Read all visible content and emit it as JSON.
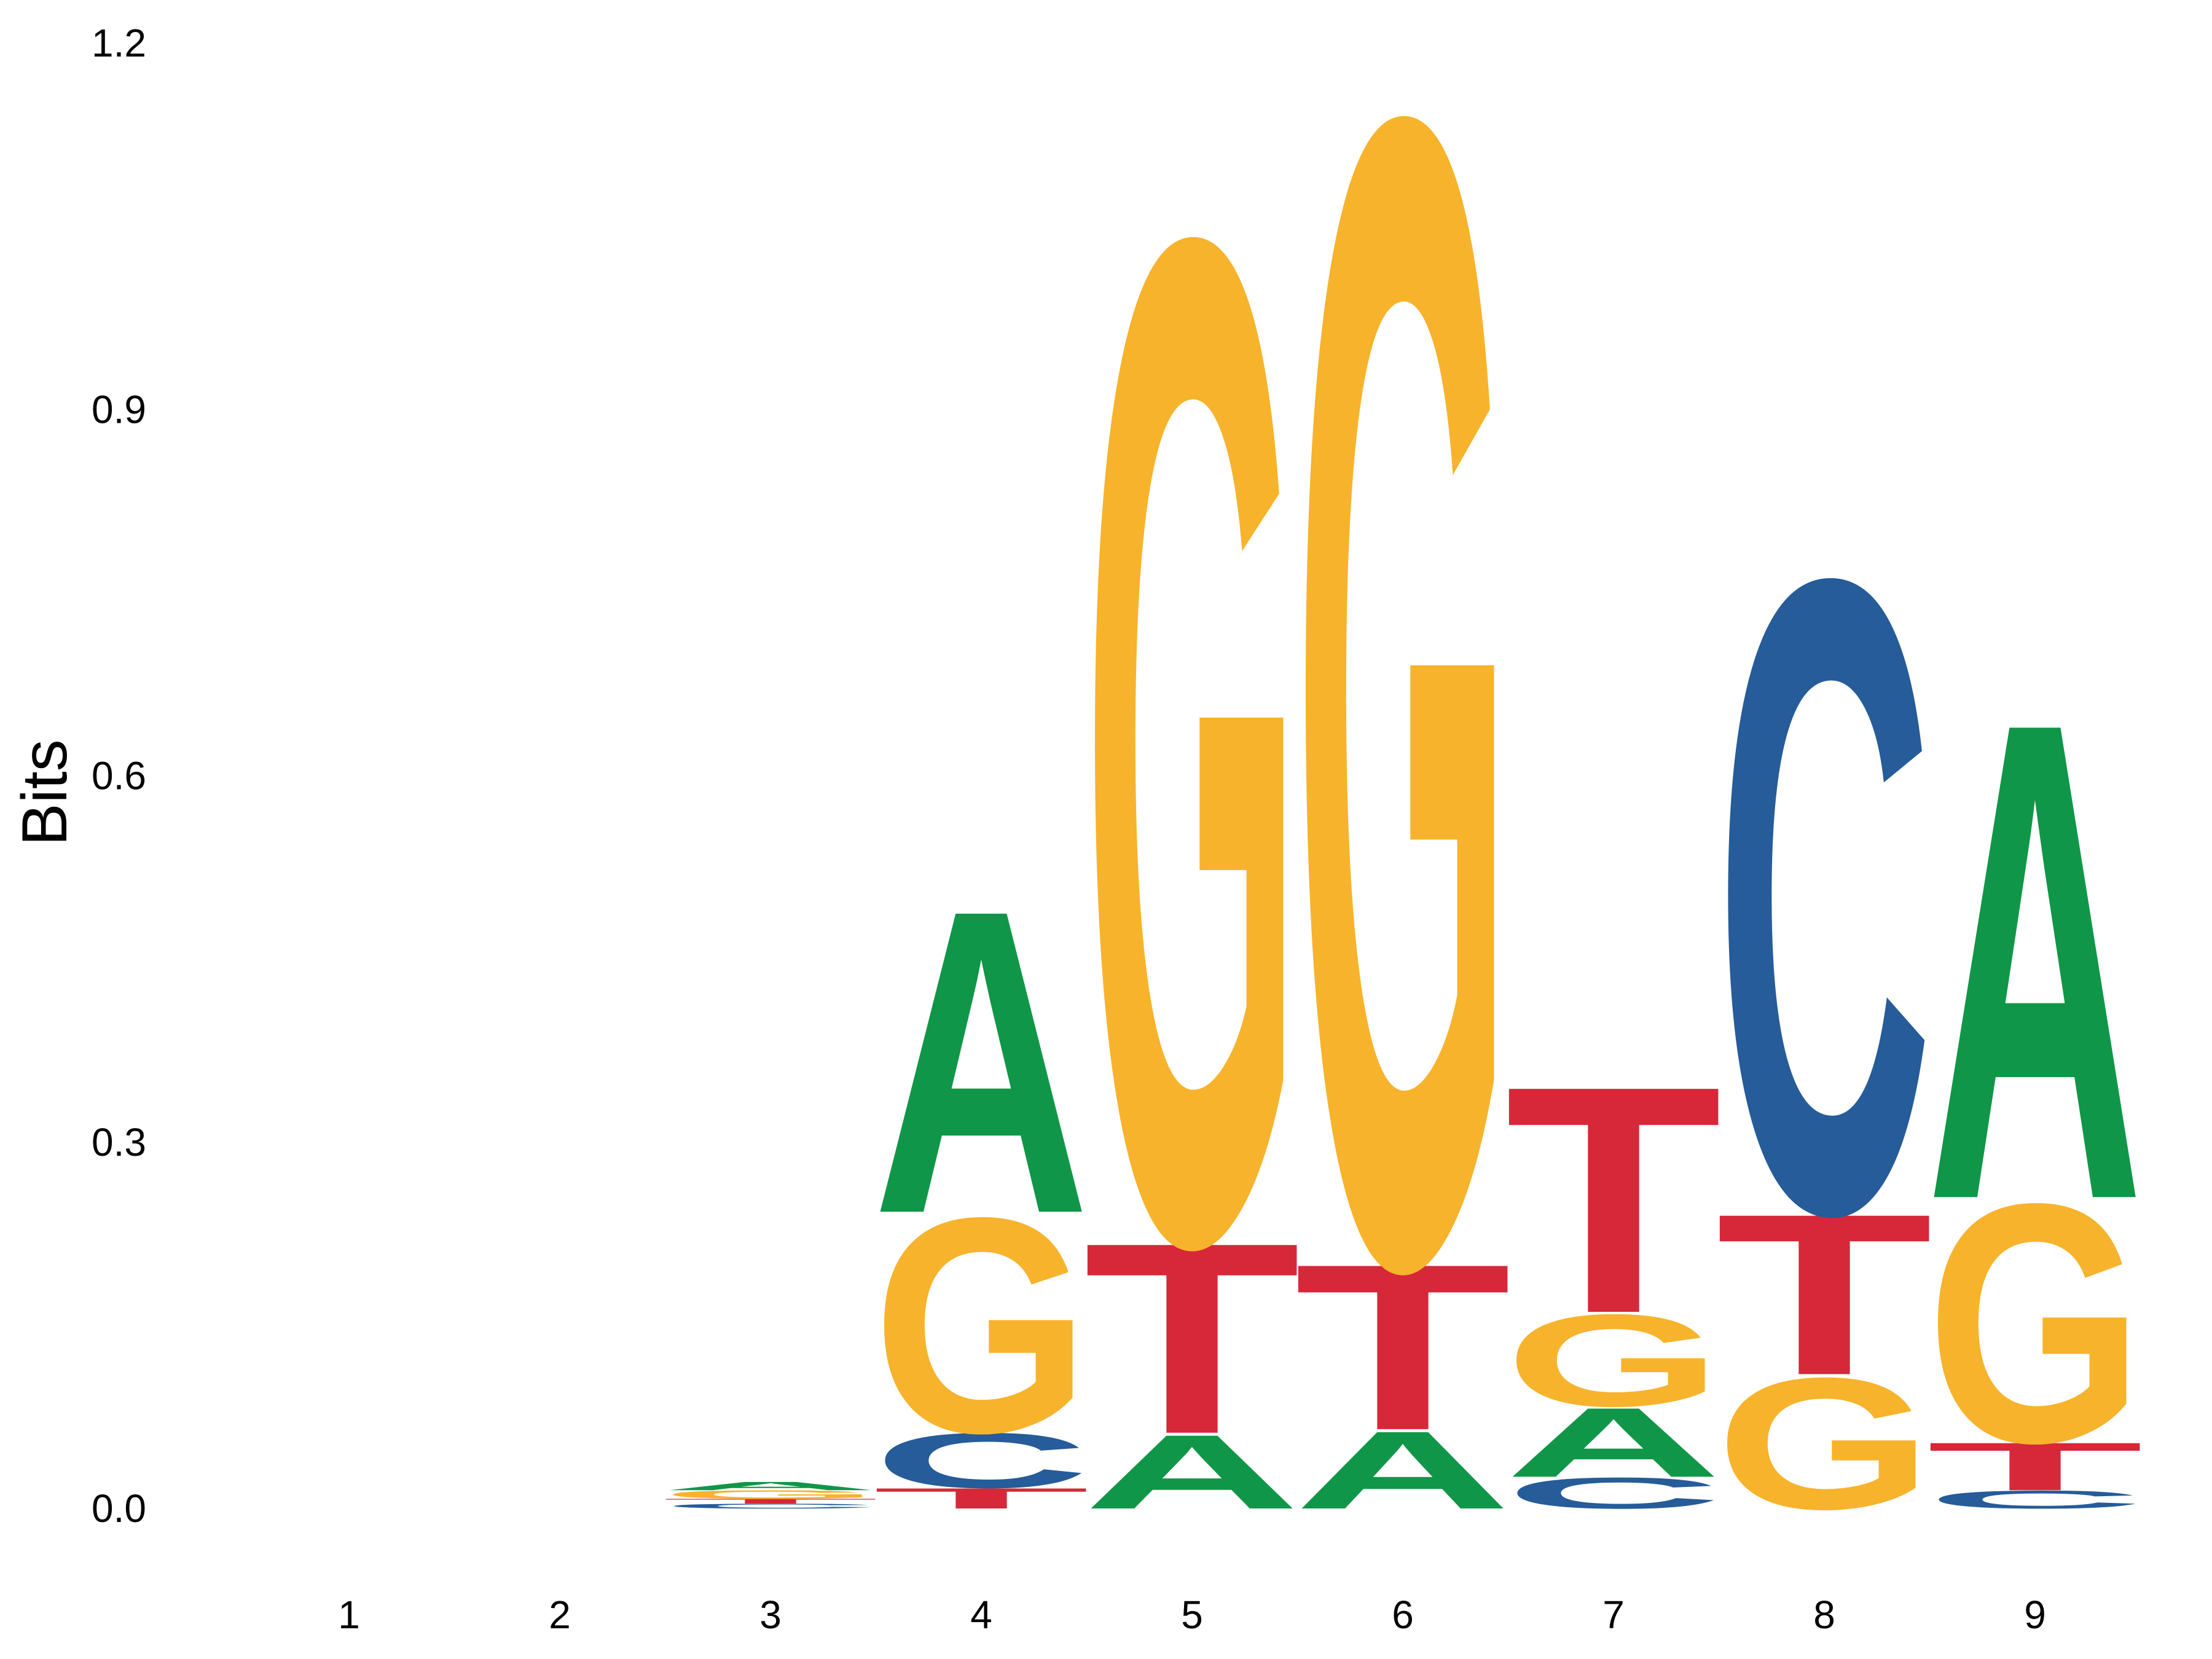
{
  "chart_data": {
    "type": "sequence-logo",
    "ylabel": "Bits",
    "ylim": [
      0,
      1.2
    ],
    "y_ticks": [
      "0.0",
      "0.3",
      "0.6",
      "0.9",
      "1.2"
    ],
    "positions": [
      "1",
      "2",
      "3",
      "4",
      "5",
      "6",
      "7",
      "8",
      "9"
    ],
    "colors": {
      "A": "#109648",
      "C": "#255C99",
      "G": "#F7B32B",
      "T": "#D62839"
    },
    "stacks": [
      {
        "position": "1",
        "letters": []
      },
      {
        "position": "2",
        "letters": []
      },
      {
        "position": "3",
        "letters": [
          {
            "base": "C",
            "bits": 0.004
          },
          {
            "base": "T",
            "bits": 0.004
          },
          {
            "base": "G",
            "bits": 0.007
          },
          {
            "base": "A",
            "bits": 0.007
          }
        ]
      },
      {
        "position": "4",
        "letters": [
          {
            "base": "T",
            "bits": 0.017
          },
          {
            "base": "C",
            "bits": 0.046
          },
          {
            "base": "G",
            "bits": 0.18
          },
          {
            "base": "A",
            "bits": 0.254
          }
        ]
      },
      {
        "position": "5",
        "letters": [
          {
            "base": "A",
            "bits": 0.062
          },
          {
            "base": "T",
            "bits": 0.16
          },
          {
            "base": "G",
            "bits": 0.84
          }
        ]
      },
      {
        "position": "6",
        "letters": [
          {
            "base": "A",
            "bits": 0.065
          },
          {
            "base": "T",
            "bits": 0.139
          },
          {
            "base": "G",
            "bits": 0.96
          }
        ]
      },
      {
        "position": "7",
        "letters": [
          {
            "base": "C",
            "bits": 0.026
          },
          {
            "base": "A",
            "bits": 0.058
          },
          {
            "base": "G",
            "bits": 0.077
          },
          {
            "base": "T",
            "bits": 0.19
          }
        ]
      },
      {
        "position": "8",
        "letters": [
          {
            "base": "G",
            "bits": 0.11
          },
          {
            "base": "T",
            "bits": 0.135
          },
          {
            "base": "C",
            "bits": 0.53
          }
        ]
      },
      {
        "position": "9",
        "letters": [
          {
            "base": "C",
            "bits": 0.015
          },
          {
            "base": "T",
            "bits": 0.04
          },
          {
            "base": "G",
            "bits": 0.2
          },
          {
            "base": "A",
            "bits": 0.4
          }
        ]
      }
    ]
  }
}
